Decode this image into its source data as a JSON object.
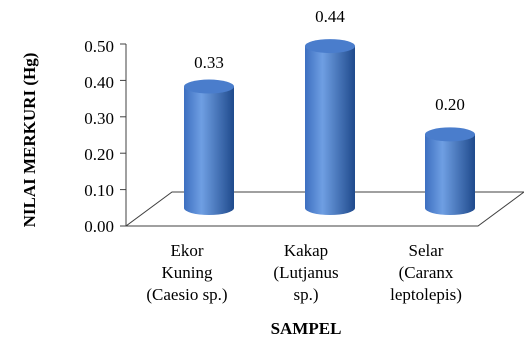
{
  "chart_data": {
    "type": "bar",
    "style": "3d-cylinder",
    "categories": [
      [
        "Ekor",
        "Kuning",
        "(Caesio sp.)"
      ],
      [
        "Kakap",
        "(Lutjanus",
        "sp.)"
      ],
      [
        "Selar",
        "(Caranx",
        "leptolepis)"
      ]
    ],
    "values": [
      0.33,
      0.44,
      0.2
    ],
    "data_labels": [
      "0.33",
      "0.44",
      "0.20"
    ],
    "ylim": [
      0,
      0.5
    ],
    "yticks": [
      "0.00",
      "0.10",
      "0.20",
      "0.30",
      "0.40",
      "0.50"
    ],
    "xlabel": "SAMPEL",
    "ylabel": "NILAI MERKURI (Hg)",
    "grid": false,
    "legend": "none",
    "colors": {
      "bar_light": "#6f9fe3",
      "bar_mid": "#3d6fc0",
      "bar_dark": "#1f4a8c",
      "bar_top": "#4a7dcc",
      "axis": "#404040"
    }
  }
}
